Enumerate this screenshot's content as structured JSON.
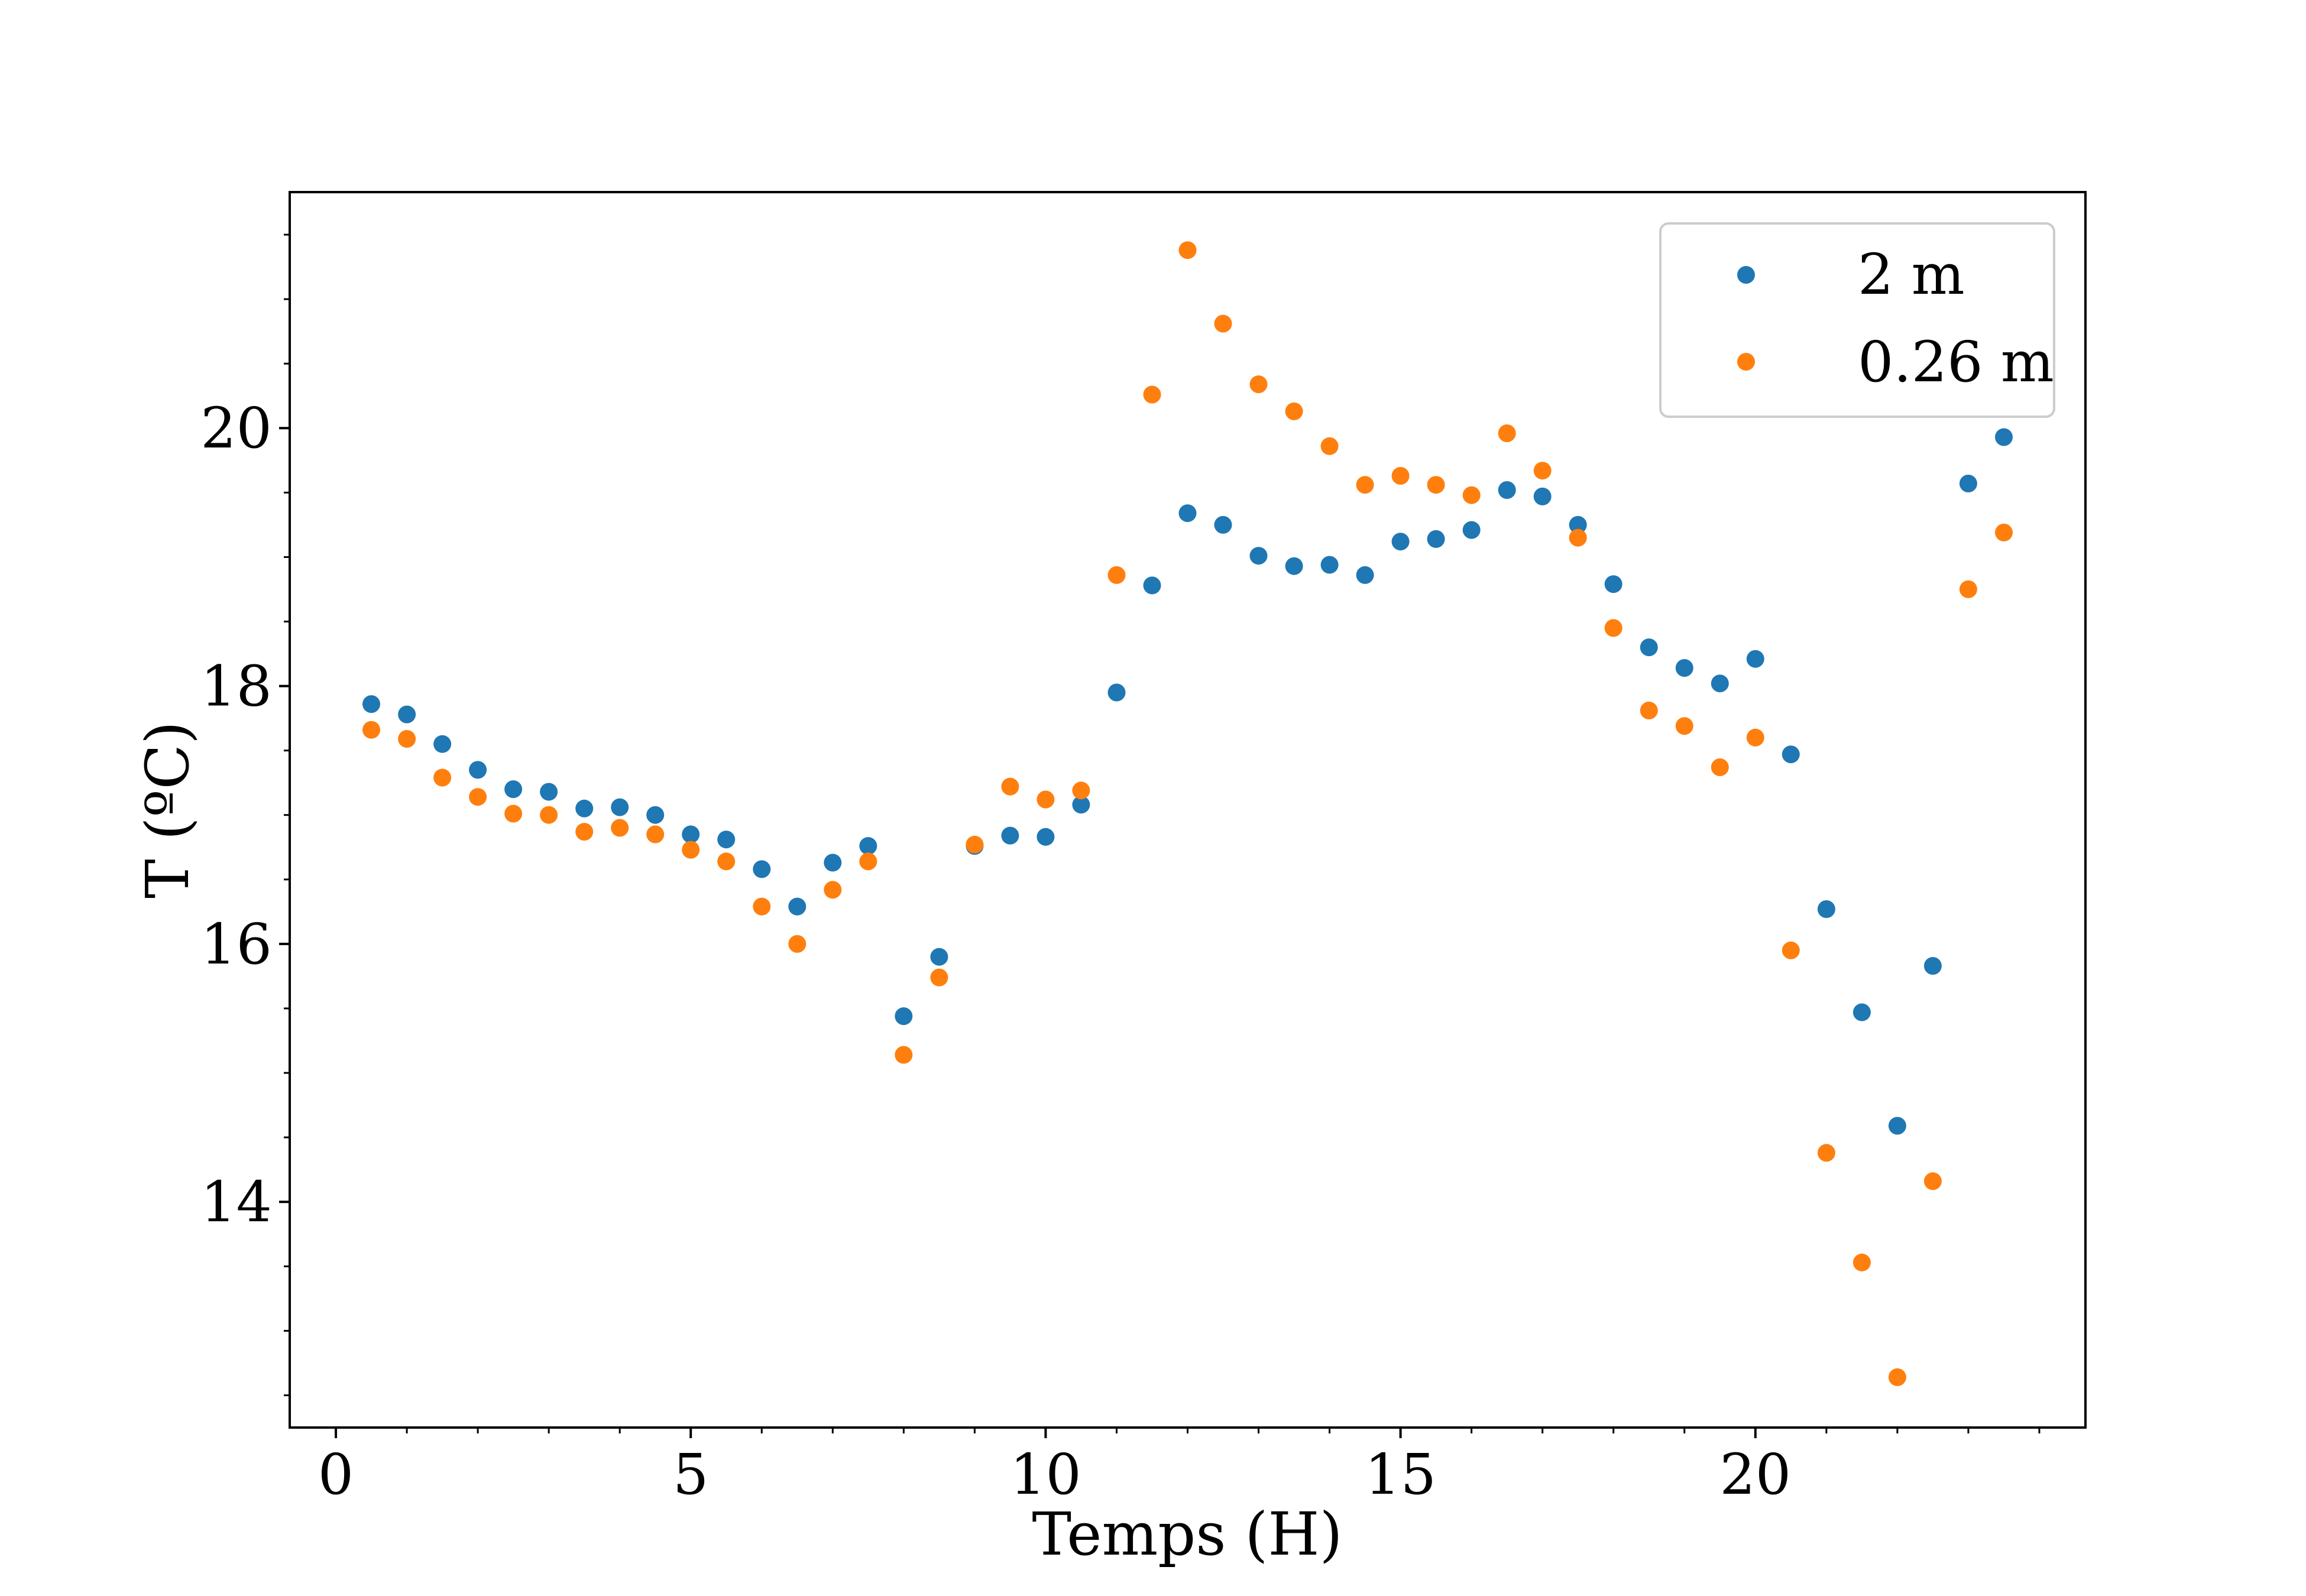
{
  "chart_data": {
    "type": "scatter",
    "title": "",
    "xlabel": "Temps (H)",
    "ylabel": "T (ºC)",
    "xlim": [
      -0.65,
      24.65
    ],
    "ylim": [
      12.25,
      21.83
    ],
    "xticks": [
      0,
      5,
      10,
      15,
      20
    ],
    "xtick_labels": [
      "0",
      "5",
      "10",
      "15",
      "20"
    ],
    "yticks": [
      14,
      16,
      18,
      20
    ],
    "ytick_labels": [
      "14",
      "16",
      "18",
      "20"
    ],
    "grid": false,
    "legend_position": "top-right",
    "series": [
      {
        "name": "2 m",
        "color": "#1f77b4",
        "x": [
          0.5,
          1,
          1.5,
          2,
          2.5,
          3,
          3.5,
          4,
          4.5,
          5,
          5.5,
          6,
          6.5,
          7,
          7.5,
          8,
          8.5,
          9,
          9.5,
          10,
          10.5,
          11,
          11.5,
          12,
          12.5,
          13,
          13.5,
          14,
          14.5,
          15,
          15.5,
          16,
          16.5,
          17,
          17.5,
          18,
          18.5,
          19,
          19.5,
          20,
          20.5,
          21,
          21.5,
          22,
          22.5,
          23,
          23.5
        ],
        "y": [
          17.86,
          17.78,
          17.55,
          17.35,
          17.2,
          17.18,
          17.05,
          17.06,
          17.0,
          16.85,
          16.81,
          16.58,
          16.29,
          16.63,
          16.76,
          15.44,
          15.9,
          16.76,
          16.84,
          16.83,
          17.08,
          17.95,
          18.78,
          19.34,
          19.25,
          19.01,
          18.93,
          18.94,
          18.86,
          19.12,
          19.14,
          19.21,
          19.52,
          19.47,
          19.25,
          18.79,
          18.3,
          18.14,
          18.02,
          18.21,
          17.47,
          16.27,
          15.47,
          14.59,
          15.83,
          19.57,
          19.93
        ]
      },
      {
        "name": "0.26 m",
        "color": "#ff7f0e",
        "x": [
          0.5,
          1,
          1.5,
          2,
          2.5,
          3,
          3.5,
          4,
          4.5,
          5,
          5.5,
          6,
          6.5,
          7,
          7.5,
          8,
          8.5,
          9,
          9.5,
          10,
          10.5,
          11,
          11.5,
          12,
          12.5,
          13,
          13.5,
          14,
          14.5,
          15,
          15.5,
          16,
          16.5,
          17,
          17.5,
          18,
          18.5,
          19,
          19.5,
          20,
          20.5,
          21,
          21.5,
          22,
          22.5,
          23,
          23.5
        ],
        "y": [
          17.66,
          17.59,
          17.29,
          17.14,
          17.01,
          17.0,
          16.87,
          16.9,
          16.85,
          16.73,
          16.64,
          16.29,
          16.0,
          16.42,
          16.64,
          15.14,
          15.74,
          16.77,
          17.22,
          17.12,
          17.19,
          18.86,
          20.26,
          21.38,
          20.81,
          20.34,
          20.13,
          19.86,
          19.56,
          19.63,
          19.56,
          19.48,
          19.96,
          19.67,
          19.15,
          18.45,
          17.81,
          17.69,
          17.37,
          17.6,
          15.95,
          14.38,
          13.53,
          12.64,
          14.16,
          18.75,
          19.19
        ]
      }
    ]
  }
}
